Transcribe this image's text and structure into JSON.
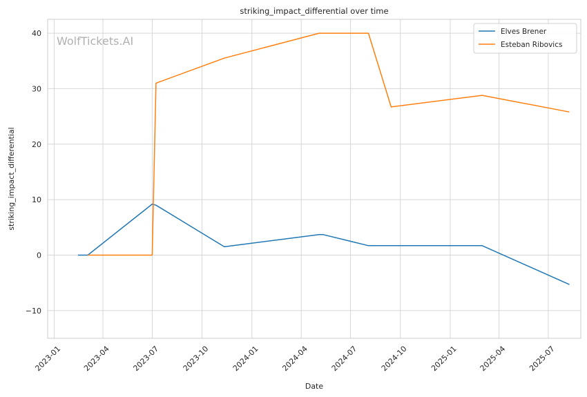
{
  "chart_data": {
    "type": "line",
    "title": "striking_impact_differential over time",
    "xlabel": "Date",
    "ylabel": "striking_impact_differential",
    "watermark": "WolfTickets.AI",
    "grid": true,
    "legend_position": "top-right",
    "x_ticks": [
      "2023-01",
      "2023-04",
      "2023-07",
      "2023-10",
      "2024-01",
      "2024-04",
      "2024-07",
      "2024-10",
      "2025-01",
      "2025-04",
      "2025-07"
    ],
    "y_ticks": [
      -10,
      0,
      10,
      20,
      30,
      40
    ],
    "ylim": [
      -15,
      42.5
    ],
    "xlim": [
      "2022-12-20",
      "2025-08-30"
    ],
    "series": [
      {
        "name": "Elves Brener",
        "color": "#1f77b4",
        "points": [
          {
            "x": "2023-02-14",
            "y": 0
          },
          {
            "x": "2023-03-04",
            "y": 0
          },
          {
            "x": "2023-07-01",
            "y": 9.2
          },
          {
            "x": "2023-07-08",
            "y": 9.0
          },
          {
            "x": "2023-11-11",
            "y": 1.5
          },
          {
            "x": "2024-05-04",
            "y": 3.7
          },
          {
            "x": "2024-05-11",
            "y": 3.7
          },
          {
            "x": "2024-08-03",
            "y": 1.7
          },
          {
            "x": "2025-03-01",
            "y": 1.7
          },
          {
            "x": "2025-08-09",
            "y": -5.3
          }
        ]
      },
      {
        "name": "Esteban Ribovics",
        "color": "#ff7f0e",
        "points": [
          {
            "x": "2023-03-04",
            "y": 0
          },
          {
            "x": "2023-07-01",
            "y": 0
          },
          {
            "x": "2023-07-08",
            "y": 31.0
          },
          {
            "x": "2023-11-11",
            "y": 35.5
          },
          {
            "x": "2024-05-04",
            "y": 40.0
          },
          {
            "x": "2024-08-03",
            "y": 40.0
          },
          {
            "x": "2024-09-14",
            "y": 26.7
          },
          {
            "x": "2025-03-01",
            "y": 28.8
          },
          {
            "x": "2025-08-09",
            "y": 25.8
          }
        ]
      }
    ]
  }
}
